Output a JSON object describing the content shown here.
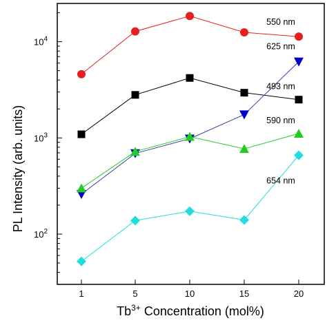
{
  "chart_data": {
    "type": "line",
    "x_scale": "categorical",
    "y_scale": "log",
    "categories": [
      "1",
      "5",
      "10",
      "15",
      "20"
    ],
    "ylim": [
      30,
      25000
    ],
    "grid": false,
    "legend": "none",
    "xlabel": {
      "prefix": "Tb",
      "superscript": "3+",
      "suffix": " Concentration (mol%)"
    },
    "ylabel": "PL Intensity (arb. units)",
    "y_ticks": [
      {
        "value": 100,
        "base": "10",
        "exp": "2"
      },
      {
        "value": 1000,
        "base": "10",
        "exp": "3"
      },
      {
        "value": 10000,
        "base": "10",
        "exp": "4"
      }
    ],
    "series": [
      {
        "name": "550 nm",
        "marker": "circle",
        "color": "#e62020",
        "values": [
          4600,
          12800,
          18500,
          12500,
          11300
        ]
      },
      {
        "name": "493 nm",
        "marker": "square",
        "color": "#000000",
        "values": [
          1090,
          2800,
          4200,
          2950,
          2500
        ]
      },
      {
        "name": "625 nm",
        "marker": "triangle-down",
        "color": "#0000cc",
        "line_color": "#4040a0",
        "values": [
          260,
          690,
          980,
          1750,
          6200
        ]
      },
      {
        "name": "590 nm",
        "marker": "triangle-up",
        "color": "#22cc22",
        "values": [
          300,
          720,
          1030,
          770,
          1110
        ]
      },
      {
        "name": "654 nm",
        "marker": "diamond",
        "color": "#22dddd",
        "values": [
          52,
          138,
          173,
          140,
          660
        ]
      }
    ]
  }
}
